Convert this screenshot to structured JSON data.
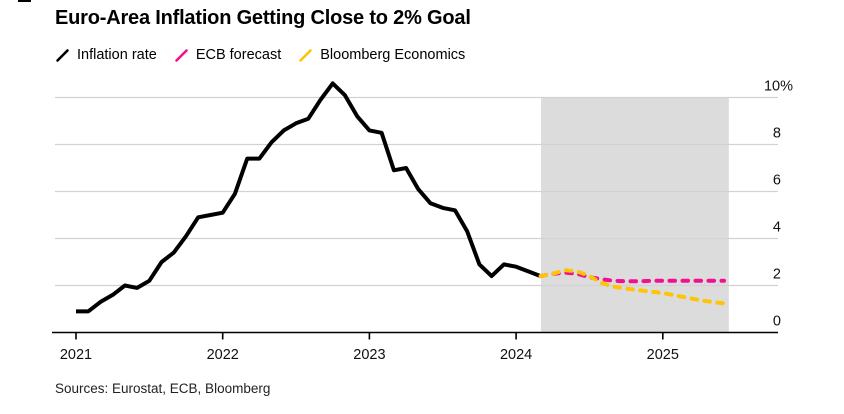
{
  "header": {
    "title": "Euro-Area Inflation Getting Close to 2% Goal"
  },
  "legend": {
    "items": [
      {
        "label": "Inflation rate",
        "color": "#000000"
      },
      {
        "label": "ECB forecast",
        "color": "#f2108f"
      },
      {
        "label": "Bloomberg Economics",
        "color": "#fdc506"
      }
    ]
  },
  "footer": {
    "sources_label": "Sources: Eurostat, ECB, Bloomberg"
  },
  "chart_data": {
    "type": "line",
    "title": "Euro-Area Inflation Getting Close to 2% Goal",
    "xlabel": "",
    "ylabel": "",
    "y_axis": {
      "ticks": [
        0,
        2,
        4,
        6,
        8,
        10
      ],
      "top_tick_suffix": "%",
      "ylim": [
        0,
        10.8
      ],
      "labels_position": "right",
      "grid": true
    },
    "x_axis": {
      "tick_years": [
        2021,
        2022,
        2023,
        2024,
        2025
      ],
      "xlim": [
        2021.0,
        2025.78
      ]
    },
    "forecast_band": {
      "start_year": 2024.17,
      "end_year": 2025.45,
      "color": "#dcdcdc"
    },
    "series": [
      {
        "name": "Inflation rate",
        "color": "#000000",
        "line_style": "solid",
        "start_year": 2021.0,
        "interval_months": 1,
        "values": [
          0.9,
          0.9,
          1.3,
          1.6,
          2.0,
          1.9,
          2.2,
          3.0,
          3.4,
          4.1,
          4.9,
          5.0,
          5.1,
          5.9,
          7.4,
          7.4,
          8.1,
          8.6,
          8.9,
          9.1,
          9.9,
          10.6,
          10.1,
          9.2,
          8.6,
          8.5,
          6.9,
          7.0,
          6.1,
          5.5,
          5.3,
          5.2,
          4.3,
          2.9,
          2.4,
          2.9,
          2.8,
          2.6,
          2.4
        ]
      },
      {
        "name": "ECB forecast",
        "color": "#f2108f",
        "line_style": "dashed",
        "start_year": 2024.167,
        "interval_months": 1,
        "values": [
          2.4,
          2.5,
          2.55,
          2.5,
          2.35,
          2.27,
          2.2,
          2.18,
          2.18,
          2.2,
          2.2,
          2.2,
          2.2,
          2.2,
          2.2,
          2.2
        ]
      },
      {
        "name": "Bloomberg Economics",
        "color": "#fdc506",
        "line_style": "dashed",
        "start_year": 2024.167,
        "interval_months": 1,
        "values": [
          2.4,
          2.5,
          2.65,
          2.6,
          2.4,
          2.1,
          1.95,
          1.87,
          1.8,
          1.74,
          1.68,
          1.58,
          1.48,
          1.38,
          1.3,
          1.24
        ]
      }
    ]
  }
}
